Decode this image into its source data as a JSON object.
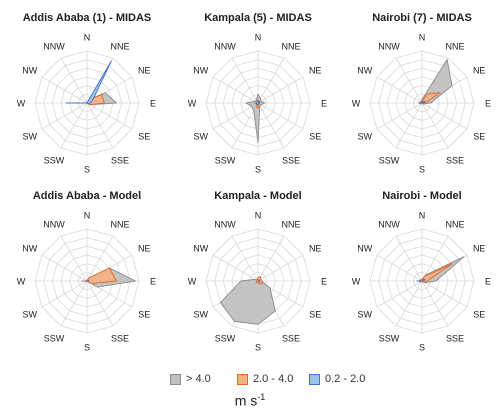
{
  "chart_data": [
    {
      "type": "radar",
      "title": "Addis Ababa (1) - MIDAS",
      "directions": [
        "N",
        "NNE",
        "NE",
        "E",
        "SE",
        "SSE",
        "S",
        "SSW",
        "SW",
        "W",
        "NW",
        "NNW"
      ],
      "rmax": 30,
      "series": [
        {
          "name": "> 4.0",
          "values": [
            0,
            2,
            12,
            17,
            2,
            0,
            0,
            0,
            0,
            0,
            0,
            0
          ]
        },
        {
          "name": "2.0 - 4.0",
          "values": [
            0,
            2,
            10,
            10,
            2,
            0,
            0,
            0,
            0,
            1,
            0,
            0
          ]
        },
        {
          "name": "0.2 - 2.0",
          "values": [
            0,
            28,
            4,
            2,
            1,
            0,
            0,
            0,
            0,
            12,
            0,
            0
          ]
        }
      ]
    },
    {
      "type": "radar",
      "title": "Kampala (5) - MIDAS",
      "directions": [
        "N",
        "NNE",
        "NE",
        "E",
        "SE",
        "SSE",
        "S",
        "SSW",
        "SW",
        "W",
        "NW",
        "NNW"
      ],
      "rmax": 30,
      "series": [
        {
          "name": "> 4.0",
          "values": [
            5,
            3,
            2,
            4,
            2,
            2,
            23,
            5,
            4,
            7,
            2,
            2
          ]
        },
        {
          "name": "2.0 - 4.0",
          "values": [
            2,
            1,
            1,
            1,
            1,
            1,
            3,
            2,
            1,
            2,
            1,
            1
          ]
        },
        {
          "name": "0.2 - 2.0",
          "values": [
            1,
            1,
            1,
            1,
            0,
            0,
            1,
            1,
            1,
            1,
            1,
            1
          ]
        }
      ]
    },
    {
      "type": "radar",
      "title": "Nairobi (7) - MIDAS",
      "directions": [
        "N",
        "NNE",
        "NE",
        "E",
        "SE",
        "SSE",
        "S",
        "SSW",
        "SW",
        "W",
        "NW",
        "NNW"
      ],
      "rmax": 30,
      "series": [
        {
          "name": "> 4.0",
          "values": [
            2,
            29,
            20,
            5,
            1,
            0,
            0,
            0,
            1,
            2,
            1,
            1
          ]
        },
        {
          "name": "2.0 - 4.0",
          "values": [
            1,
            6,
            12,
            2,
            1,
            0,
            0,
            0,
            0,
            1,
            1,
            0
          ]
        },
        {
          "name": "0.2 - 2.0",
          "values": [
            0,
            1,
            2,
            1,
            0,
            0,
            0,
            0,
            0,
            1,
            0,
            0
          ]
        }
      ]
    },
    {
      "type": "radar",
      "title": "Addis Ababa - Model",
      "directions": [
        "N",
        "NNE",
        "NE",
        "E",
        "SE",
        "SSE",
        "S",
        "SSW",
        "SW",
        "W",
        "NW",
        "NNW"
      ],
      "rmax": 30,
      "series": [
        {
          "name": "> 4.0",
          "values": [
            0,
            2,
            15,
            28,
            7,
            0,
            0,
            0,
            0,
            3,
            0,
            0
          ]
        },
        {
          "name": "2.0 - 4.0",
          "values": [
            0,
            2,
            15,
            17,
            3,
            0,
            0,
            0,
            0,
            3,
            0,
            0
          ]
        },
        {
          "name": "0.2 - 2.0",
          "values": [
            0,
            0,
            1,
            1,
            0,
            0,
            0,
            0,
            0,
            1,
            0,
            0
          ]
        }
      ]
    },
    {
      "type": "radar",
      "title": "Kampala - Model",
      "directions": [
        "N",
        "NNE",
        "NE",
        "E",
        "SE",
        "SSE",
        "S",
        "SSW",
        "SW",
        "W",
        "NW",
        "NNW"
      ],
      "rmax": 30,
      "series": [
        {
          "name": "> 4.0",
          "values": [
            1,
            1,
            1,
            2,
            8,
            20,
            25,
            27,
            25,
            10,
            2,
            1
          ]
        },
        {
          "name": "2.0 - 4.0",
          "values": [
            2,
            3,
            2,
            2,
            3,
            2,
            1,
            1,
            1,
            1,
            1,
            1
          ]
        },
        {
          "name": "0.2 - 2.0",
          "values": [
            0,
            1,
            1,
            1,
            1,
            0,
            0,
            0,
            0,
            0,
            0,
            0
          ]
        }
      ]
    },
    {
      "type": "radar",
      "title": "Nairobi - Model",
      "directions": [
        "N",
        "NNE",
        "NE",
        "E",
        "SE",
        "SSE",
        "S",
        "SSW",
        "SW",
        "W",
        "NW",
        "NNW"
      ],
      "rmax": 30,
      "series": [
        {
          "name": "> 4.0",
          "values": [
            1,
            4,
            28,
            8,
            2,
            0,
            0,
            0,
            1,
            2,
            1,
            1
          ]
        },
        {
          "name": "2.0 - 4.0",
          "values": [
            1,
            3,
            20,
            3,
            1,
            0,
            0,
            0,
            1,
            2,
            1,
            1
          ]
        },
        {
          "name": "0.2 - 2.0",
          "values": [
            0,
            1,
            2,
            1,
            0,
            0,
            0,
            0,
            0,
            3,
            0,
            0
          ]
        }
      ]
    }
  ],
  "legend": {
    "items": [
      {
        "label": "> 4.0",
        "color": "#bfbfbf",
        "stroke": "#8c8c8c"
      },
      {
        "label": "2.0 - 4.0",
        "color": "#f4b183",
        "stroke": "#e06a2a"
      },
      {
        "label": "0.2 - 2.0",
        "color": "#9dc3e6",
        "stroke": "#4472c4"
      }
    ]
  },
  "units": {
    "base": "m s",
    "exponent": "-1"
  },
  "colors": {
    "grid": "#d9d9d9",
    "label": "#222222"
  }
}
